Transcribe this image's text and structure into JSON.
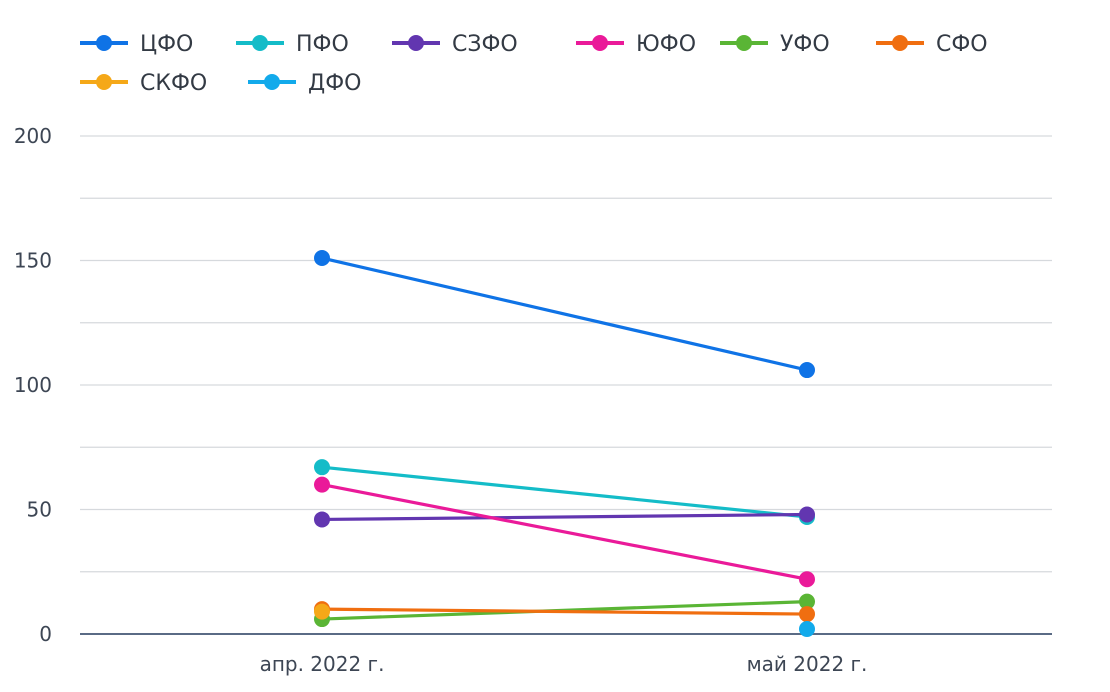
{
  "chart_data": {
    "type": "line",
    "title": "",
    "xlabel": "",
    "ylabel": "",
    "categories": [
      "апр. 2022 г.",
      "май 2022 г."
    ],
    "ylim": [
      0,
      200
    ],
    "yticks": [
      0,
      50,
      100,
      150,
      200
    ],
    "grid": true,
    "legend_position": "top",
    "series": [
      {
        "name": "ЦФО",
        "color": "#0f73e6",
        "values": [
          151,
          106
        ]
      },
      {
        "name": "ПФО",
        "color": "#14bcc8",
        "values": [
          67,
          47
        ]
      },
      {
        "name": "СЗФО",
        "color": "#6236b0",
        "values": [
          46,
          48
        ]
      },
      {
        "name": "ЮФО",
        "color": "#ea1a99",
        "values": [
          60,
          22
        ]
      },
      {
        "name": "УФО",
        "color": "#5ab535",
        "values": [
          6,
          13
        ]
      },
      {
        "name": "СФО",
        "color": "#f06e10",
        "values": [
          10,
          8
        ]
      },
      {
        "name": "СКФО",
        "color": "#f5a818",
        "values": [
          9,
          null
        ]
      },
      {
        "name": "ДФО",
        "color": "#12aaeb",
        "values": [
          null,
          2
        ]
      }
    ]
  }
}
